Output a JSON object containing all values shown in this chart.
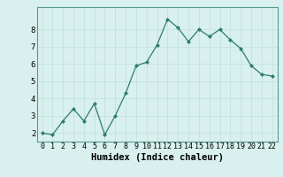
{
  "x": [
    0,
    1,
    2,
    3,
    4,
    5,
    6,
    7,
    8,
    9,
    10,
    11,
    12,
    13,
    14,
    15,
    16,
    17,
    18,
    19,
    20,
    21,
    22
  ],
  "y": [
    2.0,
    1.9,
    2.7,
    3.4,
    2.7,
    3.7,
    1.9,
    3.0,
    4.3,
    5.9,
    6.1,
    7.1,
    8.6,
    8.1,
    7.3,
    8.0,
    7.6,
    8.0,
    7.4,
    6.9,
    5.9,
    5.4,
    5.3
  ],
  "xlabel": "Humidex (Indice chaleur)",
  "line_color": "#2d7d6e",
  "bg_color": "#d8f0ee",
  "grid_color": "#c8e4e0",
  "xlabel_fontsize": 7.5,
  "yticks": [
    2,
    3,
    4,
    5,
    6,
    7,
    8
  ],
  "ylim": [
    1.5,
    9.3
  ],
  "xlim": [
    -0.5,
    22.5
  ],
  "xticks": [
    0,
    1,
    2,
    3,
    4,
    5,
    6,
    7,
    8,
    9,
    10,
    11,
    12,
    13,
    14,
    15,
    16,
    17,
    18,
    19,
    20,
    21,
    22
  ],
  "tick_fontsize": 6.0,
  "ytick_fontsize": 6.5
}
